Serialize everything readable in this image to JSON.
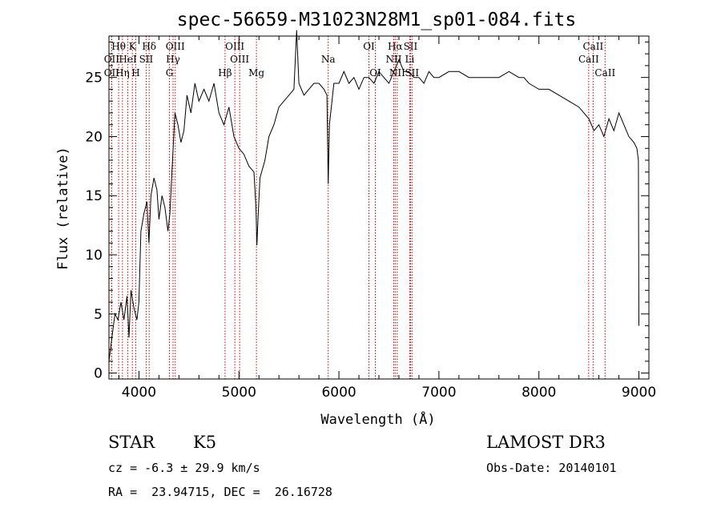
{
  "chart_data": {
    "type": "line",
    "title": "spec-56659-M31023N28M1_sp01-084.fits",
    "xlabel": "Wavelength (Å)",
    "ylabel": "Flux (relative)",
    "xlim": [
      3700,
      9100
    ],
    "ylim": [
      -0.5,
      28.5
    ],
    "x_ticks": [
      4000,
      5000,
      6000,
      7000,
      8000,
      9000
    ],
    "y_ticks": [
      0,
      5,
      10,
      15,
      20,
      25
    ],
    "x_tick_labels": [
      "4000",
      "5000",
      "6000",
      "7000",
      "8000",
      "9000"
    ],
    "y_tick_labels": [
      "0",
      "5",
      "10",
      "15",
      "20",
      "25"
    ],
    "series": [
      {
        "name": "spectrum",
        "color": "#000000",
        "points": [
          [
            3700,
            1.0
          ],
          [
            3730,
            3.0
          ],
          [
            3760,
            5.0
          ],
          [
            3790,
            4.5
          ],
          [
            3820,
            6.0
          ],
          [
            3850,
            4.5
          ],
          [
            3880,
            6.5
          ],
          [
            3900,
            3.0
          ],
          [
            3920,
            7.0
          ],
          [
            3950,
            5.5
          ],
          [
            3980,
            4.5
          ],
          [
            4000,
            6.0
          ],
          [
            4020,
            12.0
          ],
          [
            4050,
            13.5
          ],
          [
            4080,
            14.5
          ],
          [
            4100,
            11.0
          ],
          [
            4120,
            15.0
          ],
          [
            4150,
            16.5
          ],
          [
            4180,
            15.5
          ],
          [
            4200,
            13.0
          ],
          [
            4230,
            15.0
          ],
          [
            4260,
            14.0
          ],
          [
            4290,
            12.0
          ],
          [
            4310,
            13.5
          ],
          [
            4330,
            17.0
          ],
          [
            4360,
            22.0
          ],
          [
            4390,
            21.0
          ],
          [
            4420,
            19.5
          ],
          [
            4450,
            20.5
          ],
          [
            4480,
            23.5
          ],
          [
            4520,
            22.0
          ],
          [
            4560,
            24.5
          ],
          [
            4600,
            23.0
          ],
          [
            4650,
            24.0
          ],
          [
            4700,
            23.0
          ],
          [
            4750,
            24.5
          ],
          [
            4800,
            22.0
          ],
          [
            4850,
            21.0
          ],
          [
            4900,
            22.5
          ],
          [
            4950,
            20.0
          ],
          [
            5000,
            19.0
          ],
          [
            5050,
            18.5
          ],
          [
            5100,
            17.5
          ],
          [
            5150,
            17.0
          ],
          [
            5170,
            14.0
          ],
          [
            5180,
            10.8
          ],
          [
            5190,
            13.0
          ],
          [
            5210,
            16.5
          ],
          [
            5260,
            18.0
          ],
          [
            5300,
            20.0
          ],
          [
            5350,
            21.0
          ],
          [
            5400,
            22.5
          ],
          [
            5450,
            23.0
          ],
          [
            5500,
            23.5
          ],
          [
            5550,
            24.0
          ],
          [
            5577,
            29.0
          ],
          [
            5600,
            24.5
          ],
          [
            5650,
            23.5
          ],
          [
            5700,
            24.0
          ],
          [
            5750,
            24.5
          ],
          [
            5800,
            24.5
          ],
          [
            5850,
            24.0
          ],
          [
            5880,
            23.5
          ],
          [
            5893,
            16.0
          ],
          [
            5905,
            21.0
          ],
          [
            5950,
            24.5
          ],
          [
            6000,
            24.5
          ],
          [
            6050,
            25.5
          ],
          [
            6100,
            24.5
          ],
          [
            6150,
            25.0
          ],
          [
            6200,
            24.0
          ],
          [
            6250,
            25.0
          ],
          [
            6300,
            25.0
          ],
          [
            6350,
            24.5
          ],
          [
            6400,
            25.5
          ],
          [
            6450,
            25.0
          ],
          [
            6500,
            24.5
          ],
          [
            6550,
            25.5
          ],
          [
            6600,
            26.5
          ],
          [
            6650,
            25.5
          ],
          [
            6700,
            25.5
          ],
          [
            6750,
            25.0
          ],
          [
            6800,
            25.0
          ],
          [
            6850,
            24.5
          ],
          [
            6900,
            25.5
          ],
          [
            6950,
            25.0
          ],
          [
            7000,
            25.0
          ],
          [
            7100,
            25.5
          ],
          [
            7200,
            25.5
          ],
          [
            7300,
            25.0
          ],
          [
            7400,
            25.0
          ],
          [
            7500,
            25.0
          ],
          [
            7600,
            25.0
          ],
          [
            7700,
            25.5
          ],
          [
            7800,
            25.0
          ],
          [
            7850,
            25.0
          ],
          [
            7900,
            24.5
          ],
          [
            8000,
            24.0
          ],
          [
            8100,
            24.0
          ],
          [
            8200,
            23.5
          ],
          [
            8300,
            23.0
          ],
          [
            8400,
            22.5
          ],
          [
            8450,
            22.0
          ],
          [
            8500,
            21.5
          ],
          [
            8550,
            20.5
          ],
          [
            8600,
            21.0
          ],
          [
            8650,
            20.0
          ],
          [
            8700,
            21.5
          ],
          [
            8750,
            20.5
          ],
          [
            8800,
            22.0
          ],
          [
            8850,
            21.0
          ],
          [
            8900,
            20.0
          ],
          [
            8950,
            19.5
          ],
          [
            8980,
            19.0
          ],
          [
            8995,
            18.0
          ],
          [
            9000,
            4.0
          ]
        ]
      }
    ],
    "emission_lines": [
      {
        "label": "Hθ",
        "wavelength": 3797,
        "row": 1
      },
      {
        "label": "OII",
        "wavelength": 3727,
        "row": 2
      },
      {
        "label": "OII",
        "wavelength": 3727,
        "row": 3
      },
      {
        "label": "K",
        "wavelength": 3934,
        "row": 1
      },
      {
        "label": "HeI",
        "wavelength": 3889,
        "row": 2
      },
      {
        "label": "Hη",
        "wavelength": 3835,
        "row": 3
      },
      {
        "label": "H",
        "wavelength": 3968,
        "row": 3
      },
      {
        "label": "SII",
        "wavelength": 4072,
        "row": 2
      },
      {
        "label": "Hδ",
        "wavelength": 4102,
        "row": 1
      },
      {
        "label": "OIII",
        "wavelength": 4363,
        "row": 1
      },
      {
        "label": "Hγ",
        "wavelength": 4341,
        "row": 2
      },
      {
        "label": "G",
        "wavelength": 4305,
        "row": 3
      },
      {
        "label": "OIII",
        "wavelength": 4959,
        "row": 1
      },
      {
        "label": "OIII",
        "wavelength": 5007,
        "row": 2
      },
      {
        "label": "Hβ",
        "wavelength": 4861,
        "row": 3
      },
      {
        "label": "Mg",
        "wavelength": 5175,
        "row": 3
      },
      {
        "label": "Na",
        "wavelength": 5893,
        "row": 2
      },
      {
        "label": "OI",
        "wavelength": 6300,
        "row": 1
      },
      {
        "label": "OI",
        "wavelength": 6364,
        "row": 3
      },
      {
        "label": "Hα",
        "wavelength": 6563,
        "row": 1
      },
      {
        "label": "NII",
        "wavelength": 6548,
        "row": 2
      },
      {
        "label": "NII",
        "wavelength": 6583,
        "row": 3
      },
      {
        "label": "SII",
        "wavelength": 6716,
        "row": 1
      },
      {
        "label": "Li",
        "wavelength": 6708,
        "row": 2
      },
      {
        "label": "SII",
        "wavelength": 6731,
        "row": 3
      },
      {
        "label": "CaII",
        "wavelength": 8542,
        "row": 1
      },
      {
        "label": "CaII",
        "wavelength": 8498,
        "row": 2
      },
      {
        "label": "CaII",
        "wavelength": 8662,
        "row": 3
      }
    ],
    "line_marker_color": "#cc0000"
  },
  "info": {
    "object_type": "STAR",
    "subclass": "K5",
    "survey": "LAMOST DR3",
    "cz": "cz = -6.3 ± 29.9 km/s",
    "obs_date": "Obs-Date: 20140101",
    "coords": "RA =  23.94715, DEC =  26.16728"
  }
}
